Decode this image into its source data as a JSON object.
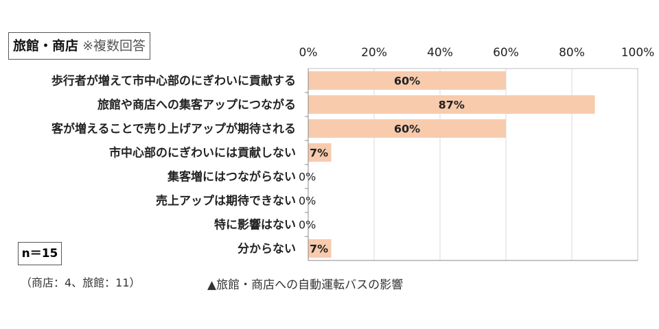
{
  "header": {
    "title_main": "旅館・商店",
    "title_note": "※複数回答"
  },
  "sample": {
    "n_label": "n＝15",
    "breakdown": "（商店：4、旅館：11）"
  },
  "caption": "▲旅館・商店への自動運転バスの影響",
  "chart_data": {
    "type": "bar",
    "orientation": "horizontal",
    "categories": [
      "歩行者が増えて市中心部のにぎわいに貢献する",
      "旅館や商店への集客アップにつながる",
      "客が増えることで売り上げアップが期待される",
      "市中心部のにぎわいには貢献しない",
      "集客増にはつながらない",
      "売上アップは期待できない",
      "特に影響はない",
      "分からない"
    ],
    "values": [
      60,
      87,
      60,
      7,
      0,
      0,
      0,
      7
    ],
    "data_labels": [
      "60%",
      "87%",
      "60%",
      "7%",
      "0%",
      "0%",
      "0%",
      "7%"
    ],
    "xlim": [
      0,
      100
    ],
    "xticks": [
      "0%",
      "20%",
      "40%",
      "60%",
      "80%",
      "100%"
    ],
    "axis_position": "top",
    "grid": true,
    "bar_color": "#f8cbad"
  }
}
